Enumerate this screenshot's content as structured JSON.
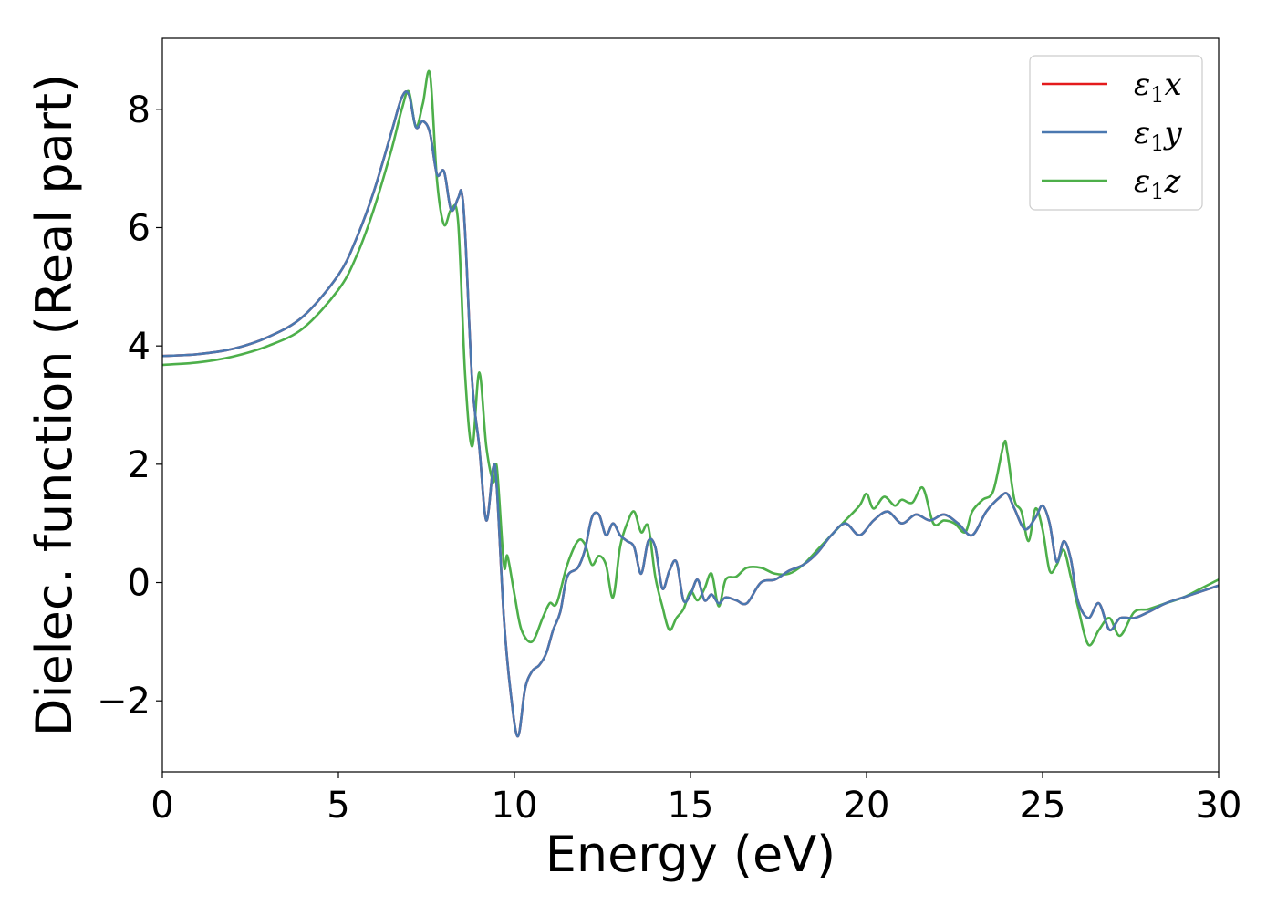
{
  "chart_data": {
    "type": "line",
    "xlabel": "Energy (eV)",
    "ylabel": "Dielec. function (Real part)",
    "xlim": [
      0,
      30
    ],
    "ylim": [
      -3.2,
      9.2
    ],
    "xticks": [
      0,
      5,
      10,
      15,
      20,
      25,
      30
    ],
    "xtick_labels": [
      "0",
      "5",
      "10",
      "15",
      "20",
      "25",
      "30"
    ],
    "yticks": [
      -2,
      0,
      2,
      4,
      6,
      8
    ],
    "ytick_labels": [
      "−2",
      "0",
      "2",
      "4",
      "6",
      "8"
    ],
    "grid": false,
    "legend_position": "top-right",
    "series": [
      {
        "name": "ε1x",
        "legend_base": "ε",
        "legend_sub": "1",
        "legend_tail": "x",
        "color": "#e41a1c",
        "x": [
          0,
          1,
          2,
          3,
          4,
          5,
          5.5,
          6,
          6.5,
          6.8,
          7.0,
          7.2,
          7.4,
          7.6,
          7.8,
          8.0,
          8.2,
          8.4,
          8.5,
          8.6,
          8.8,
          9.0,
          9.2,
          9.4,
          9.5,
          9.7,
          9.9,
          10.1,
          10.3,
          10.5,
          10.7,
          10.9,
          11.1,
          11.3,
          11.5,
          11.8,
          12.0,
          12.2,
          12.4,
          12.6,
          12.8,
          13.0,
          13.2,
          13.4,
          13.6,
          13.8,
          14.0,
          14.2,
          14.4,
          14.6,
          14.8,
          15.0,
          15.2,
          15.4,
          15.6,
          15.8,
          16.0,
          16.3,
          16.6,
          17.0,
          17.4,
          17.8,
          18.2,
          18.6,
          19.0,
          19.4,
          19.8,
          20.2,
          20.6,
          21.0,
          21.4,
          21.8,
          22.2,
          22.6,
          23.0,
          23.4,
          23.8,
          24.0,
          24.2,
          24.5,
          24.8,
          25.0,
          25.2,
          25.4,
          25.6,
          25.8,
          26.0,
          26.3,
          26.6,
          26.9,
          27.2,
          27.6,
          28.0,
          28.5,
          29.0,
          29.5,
          30.0
        ],
        "y": [
          3.83,
          3.86,
          3.95,
          4.15,
          4.5,
          5.2,
          5.8,
          6.6,
          7.6,
          8.2,
          8.25,
          7.7,
          7.8,
          7.6,
          6.9,
          6.95,
          6.3,
          6.5,
          6.6,
          5.9,
          3.4,
          2.3,
          1.05,
          1.95,
          1.6,
          -0.6,
          -1.9,
          -2.6,
          -1.8,
          -1.5,
          -1.4,
          -1.2,
          -0.8,
          -0.5,
          0.1,
          0.25,
          0.55,
          1.1,
          1.15,
          0.8,
          1.0,
          0.8,
          0.7,
          0.6,
          0.15,
          0.7,
          0.6,
          -0.1,
          0.2,
          0.35,
          -0.3,
          -0.2,
          0.05,
          -0.3,
          -0.2,
          -0.35,
          -0.25,
          -0.3,
          -0.35,
          0.0,
          0.05,
          0.2,
          0.3,
          0.5,
          0.8,
          1.0,
          0.8,
          1.05,
          1.2,
          1.0,
          1.15,
          1.05,
          1.15,
          1.0,
          0.8,
          1.2,
          1.45,
          1.5,
          1.25,
          0.9,
          1.1,
          1.3,
          1.0,
          0.35,
          0.7,
          0.4,
          -0.3,
          -0.6,
          -0.35,
          -0.8,
          -0.6,
          -0.6,
          -0.5,
          -0.35,
          -0.25,
          -0.15,
          -0.05
        ]
      },
      {
        "name": "ε1y",
        "legend_base": "ε",
        "legend_sub": "1",
        "legend_tail": "y",
        "color": "#4a78b0",
        "x": [
          0,
          1,
          2,
          3,
          4,
          5,
          5.5,
          6,
          6.5,
          6.8,
          7.0,
          7.2,
          7.4,
          7.6,
          7.8,
          8.0,
          8.2,
          8.4,
          8.5,
          8.6,
          8.8,
          9.0,
          9.2,
          9.4,
          9.5,
          9.7,
          9.9,
          10.1,
          10.3,
          10.5,
          10.7,
          10.9,
          11.1,
          11.3,
          11.5,
          11.8,
          12.0,
          12.2,
          12.4,
          12.6,
          12.8,
          13.0,
          13.2,
          13.4,
          13.6,
          13.8,
          14.0,
          14.2,
          14.4,
          14.6,
          14.8,
          15.0,
          15.2,
          15.4,
          15.6,
          15.8,
          16.0,
          16.3,
          16.6,
          17.0,
          17.4,
          17.8,
          18.2,
          18.6,
          19.0,
          19.4,
          19.8,
          20.2,
          20.6,
          21.0,
          21.4,
          21.8,
          22.2,
          22.6,
          23.0,
          23.4,
          23.8,
          24.0,
          24.2,
          24.5,
          24.8,
          25.0,
          25.2,
          25.4,
          25.6,
          25.8,
          26.0,
          26.3,
          26.6,
          26.9,
          27.2,
          27.6,
          28.0,
          28.5,
          29.0,
          29.5,
          30.0
        ],
        "y": [
          3.83,
          3.86,
          3.95,
          4.15,
          4.5,
          5.2,
          5.8,
          6.6,
          7.6,
          8.2,
          8.25,
          7.7,
          7.8,
          7.6,
          6.9,
          6.95,
          6.3,
          6.5,
          6.6,
          5.9,
          3.4,
          2.3,
          1.05,
          1.95,
          1.6,
          -0.6,
          -1.9,
          -2.6,
          -1.8,
          -1.5,
          -1.4,
          -1.2,
          -0.8,
          -0.5,
          0.1,
          0.25,
          0.55,
          1.1,
          1.15,
          0.8,
          1.0,
          0.8,
          0.7,
          0.6,
          0.15,
          0.7,
          0.6,
          -0.1,
          0.2,
          0.35,
          -0.3,
          -0.2,
          0.05,
          -0.3,
          -0.2,
          -0.35,
          -0.25,
          -0.3,
          -0.35,
          0.0,
          0.05,
          0.2,
          0.3,
          0.5,
          0.8,
          1.0,
          0.8,
          1.05,
          1.2,
          1.0,
          1.15,
          1.05,
          1.15,
          1.0,
          0.8,
          1.2,
          1.45,
          1.5,
          1.25,
          0.9,
          1.1,
          1.3,
          1.0,
          0.35,
          0.7,
          0.4,
          -0.3,
          -0.6,
          -0.35,
          -0.8,
          -0.6,
          -0.6,
          -0.5,
          -0.35,
          -0.25,
          -0.15,
          -0.05
        ]
      },
      {
        "name": "ε1z",
        "legend_base": "ε",
        "legend_sub": "1",
        "legend_tail": "z",
        "color": "#4daf4a",
        "x": [
          0,
          1,
          2,
          3,
          4,
          5,
          5.5,
          6,
          6.5,
          6.8,
          7.0,
          7.2,
          7.4,
          7.6,
          7.8,
          8.0,
          8.2,
          8.4,
          8.6,
          8.8,
          9.0,
          9.2,
          9.4,
          9.5,
          9.7,
          9.8,
          10.0,
          10.2,
          10.5,
          10.8,
          11.0,
          11.2,
          11.5,
          11.8,
          12.0,
          12.2,
          12.4,
          12.6,
          12.8,
          13.0,
          13.2,
          13.4,
          13.6,
          13.8,
          14.0,
          14.2,
          14.4,
          14.6,
          14.8,
          15.0,
          15.2,
          15.4,
          15.6,
          15.8,
          16.0,
          16.3,
          16.6,
          17.0,
          17.4,
          17.8,
          18.2,
          18.6,
          19.0,
          19.4,
          19.8,
          20.0,
          20.2,
          20.5,
          20.8,
          21.0,
          21.3,
          21.6,
          21.9,
          22.2,
          22.5,
          22.8,
          23.0,
          23.3,
          23.6,
          23.9,
          24.0,
          24.2,
          24.4,
          24.6,
          24.8,
          25.0,
          25.2,
          25.4,
          25.6,
          25.8,
          26.0,
          26.3,
          26.6,
          26.9,
          27.2,
          27.6,
          28.0,
          28.5,
          29.0,
          29.5,
          30.0
        ],
        "y": [
          3.68,
          3.72,
          3.82,
          4.0,
          4.3,
          4.95,
          5.5,
          6.3,
          7.3,
          8.0,
          8.3,
          7.7,
          8.1,
          8.6,
          6.8,
          6.05,
          6.3,
          6.1,
          3.5,
          2.3,
          3.55,
          2.3,
          1.7,
          1.95,
          0.3,
          0.45,
          -0.2,
          -0.8,
          -1.0,
          -0.6,
          -0.35,
          -0.35,
          0.3,
          0.7,
          0.65,
          0.3,
          0.45,
          0.3,
          -0.25,
          0.6,
          1.0,
          1.2,
          0.85,
          0.95,
          0.1,
          -0.4,
          -0.8,
          -0.6,
          -0.45,
          -0.15,
          -0.3,
          -0.1,
          0.15,
          -0.4,
          0.05,
          0.1,
          0.25,
          0.25,
          0.15,
          0.15,
          0.3,
          0.55,
          0.8,
          1.05,
          1.3,
          1.5,
          1.25,
          1.45,
          1.3,
          1.4,
          1.35,
          1.6,
          1.0,
          1.05,
          1.0,
          0.85,
          1.2,
          1.4,
          1.55,
          2.35,
          2.2,
          1.4,
          1.2,
          0.7,
          1.25,
          0.9,
          0.2,
          0.3,
          0.55,
          0.1,
          -0.4,
          -1.05,
          -0.8,
          -0.6,
          -0.9,
          -0.5,
          -0.45,
          -0.35,
          -0.25,
          -0.1,
          0.05
        ]
      }
    ]
  }
}
